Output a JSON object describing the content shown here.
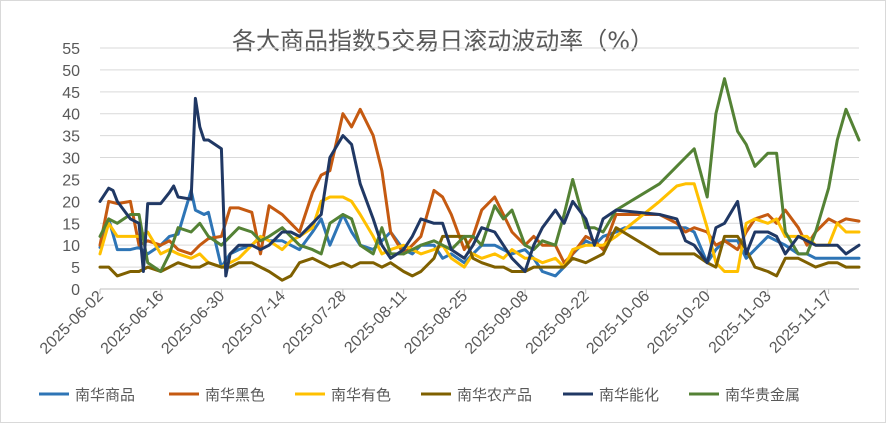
{
  "chart_data": {
    "type": "line",
    "title": "各大商品指数5交易日滚动波动率（%）",
    "ylim": [
      0,
      55
    ],
    "yticks": [
      0,
      5,
      10,
      15,
      20,
      25,
      30,
      35,
      40,
      45,
      50,
      55
    ],
    "xlim": [
      "2025-06-02",
      "2025-11-24"
    ],
    "xticks": [
      "2025-06-02",
      "2025-06-16",
      "2025-06-30",
      "2025-07-14",
      "2025-07-28",
      "2025-08-11",
      "2025-08-25",
      "2025-09-08",
      "2025-09-22",
      "2025-10-06",
      "2025-10-20",
      "2025-11-03",
      "2025-11-17"
    ],
    "grid": "horizontal",
    "legend_position": "bottom",
    "series": [
      {
        "name": "南华商品",
        "color": "#2E75B6",
        "x": [
          "2025-06-02",
          "2025-06-04",
          "2025-06-06",
          "2025-06-09",
          "2025-06-11",
          "2025-06-13",
          "2025-06-16",
          "2025-06-18",
          "2025-06-20",
          "2025-06-23",
          "2025-06-24",
          "2025-06-26",
          "2025-06-27",
          "2025-06-30",
          "2025-07-02",
          "2025-07-04",
          "2025-07-07",
          "2025-07-09",
          "2025-07-11",
          "2025-07-14",
          "2025-07-16",
          "2025-07-18",
          "2025-07-21",
          "2025-07-23",
          "2025-07-25",
          "2025-07-28",
          "2025-07-30",
          "2025-08-01",
          "2025-08-04",
          "2025-08-06",
          "2025-08-08",
          "2025-08-11",
          "2025-08-13",
          "2025-08-15",
          "2025-08-18",
          "2025-08-20",
          "2025-08-22",
          "2025-08-25",
          "2025-08-27",
          "2025-08-29",
          "2025-09-01",
          "2025-09-03",
          "2025-09-05",
          "2025-09-08",
          "2025-09-10",
          "2025-09-12",
          "2025-09-15",
          "2025-09-17",
          "2025-09-19",
          "2025-09-22",
          "2025-09-24",
          "2025-09-26",
          "2025-09-29",
          "2025-10-01",
          "2025-10-09",
          "2025-10-13",
          "2025-10-15",
          "2025-10-17",
          "2025-10-20",
          "2025-10-22",
          "2025-10-24",
          "2025-10-27",
          "2025-10-29",
          "2025-10-31",
          "2025-11-03",
          "2025-11-05",
          "2025-11-07",
          "2025-11-10",
          "2025-11-12",
          "2025-11-14",
          "2025-11-17",
          "2025-11-19",
          "2025-11-21",
          "2025-11-24"
        ],
        "values": [
          9.5,
          16,
          9,
          9,
          9.5,
          8,
          10,
          12,
          12.5,
          22.5,
          18,
          17,
          17.5,
          5,
          8,
          9,
          10,
          12,
          11,
          11,
          10,
          9,
          13,
          16,
          10,
          17,
          13,
          10,
          9,
          11,
          13,
          9,
          8,
          10,
          10,
          7,
          8,
          6,
          8,
          10,
          10,
          9,
          8,
          9,
          7,
          4,
          3,
          5,
          8,
          11,
          10,
          12,
          13,
          14,
          14,
          14,
          14,
          13,
          6,
          9,
          11,
          11,
          7,
          9,
          12,
          11,
          10,
          8,
          8,
          7,
          7,
          7,
          7,
          7
        ]
      },
      {
        "name": "南华黑色",
        "color": "#C55A11",
        "x": [
          "2025-06-02",
          "2025-06-04",
          "2025-06-06",
          "2025-06-09",
          "2025-06-11",
          "2025-06-13",
          "2025-06-16",
          "2025-06-18",
          "2025-06-20",
          "2025-06-23",
          "2025-06-25",
          "2025-06-27",
          "2025-06-30",
          "2025-07-02",
          "2025-07-04",
          "2025-07-07",
          "2025-07-09",
          "2025-07-11",
          "2025-07-14",
          "2025-07-16",
          "2025-07-18",
          "2025-07-21",
          "2025-07-23",
          "2025-07-25",
          "2025-07-28",
          "2025-07-30",
          "2025-08-01",
          "2025-08-04",
          "2025-08-06",
          "2025-08-08",
          "2025-08-11",
          "2025-08-13",
          "2025-08-15",
          "2025-08-18",
          "2025-08-20",
          "2025-08-22",
          "2025-08-25",
          "2025-08-27",
          "2025-08-29",
          "2025-09-01",
          "2025-09-03",
          "2025-09-05",
          "2025-09-08",
          "2025-09-10",
          "2025-09-12",
          "2025-09-15",
          "2025-09-17",
          "2025-09-19",
          "2025-09-22",
          "2025-09-24",
          "2025-09-26",
          "2025-09-29",
          "2025-10-09",
          "2025-10-13",
          "2025-10-15",
          "2025-10-17",
          "2025-10-20",
          "2025-10-22",
          "2025-10-24",
          "2025-10-27",
          "2025-10-29",
          "2025-10-31",
          "2025-11-03",
          "2025-11-05",
          "2025-11-07",
          "2025-11-10",
          "2025-11-12",
          "2025-11-14",
          "2025-11-17",
          "2025-11-19",
          "2025-11-21",
          "2025-11-24"
        ],
        "values": [
          10,
          20,
          19.5,
          20,
          10,
          11,
          10,
          11,
          9,
          8,
          10,
          11.5,
          12,
          18.5,
          18.5,
          17.5,
          8,
          19,
          17,
          15,
          13,
          22,
          26,
          27,
          40,
          37,
          41,
          35,
          27,
          13,
          8,
          10,
          12,
          22.5,
          21,
          17,
          9,
          12,
          18,
          21,
          17,
          13,
          10,
          12,
          10,
          10,
          6,
          8,
          12,
          11,
          9,
          17,
          17,
          15,
          13,
          14,
          13,
          10,
          11,
          9,
          13,
          16,
          17,
          15,
          18,
          14,
          10,
          13,
          16,
          15,
          16,
          15.5
        ]
      },
      {
        "name": "南华有色",
        "color": "#FFC000",
        "x": [
          "2025-06-02",
          "2025-06-04",
          "2025-06-06",
          "2025-06-09",
          "2025-06-11",
          "2025-06-13",
          "2025-06-16",
          "2025-06-18",
          "2025-06-20",
          "2025-06-23",
          "2025-06-25",
          "2025-06-27",
          "2025-06-30",
          "2025-07-02",
          "2025-07-04",
          "2025-07-07",
          "2025-07-09",
          "2025-07-11",
          "2025-07-14",
          "2025-07-16",
          "2025-07-18",
          "2025-07-21",
          "2025-07-23",
          "2025-07-25",
          "2025-07-28",
          "2025-07-30",
          "2025-08-01",
          "2025-08-04",
          "2025-08-06",
          "2025-08-08",
          "2025-08-11",
          "2025-08-13",
          "2025-08-15",
          "2025-08-18",
          "2025-08-20",
          "2025-08-22",
          "2025-08-25",
          "2025-08-27",
          "2025-08-29",
          "2025-09-01",
          "2025-09-03",
          "2025-09-05",
          "2025-09-08",
          "2025-09-10",
          "2025-09-12",
          "2025-09-15",
          "2025-09-17",
          "2025-09-19",
          "2025-09-22",
          "2025-09-24",
          "2025-09-26",
          "2025-09-29",
          "2025-10-09",
          "2025-10-13",
          "2025-10-15",
          "2025-10-17",
          "2025-10-20",
          "2025-10-22",
          "2025-10-24",
          "2025-10-27",
          "2025-10-29",
          "2025-10-31",
          "2025-11-03",
          "2025-11-05",
          "2025-11-07",
          "2025-11-10",
          "2025-11-12",
          "2025-11-14",
          "2025-11-17",
          "2025-11-19",
          "2025-11-21",
          "2025-11-24"
        ],
        "values": [
          8,
          15,
          12,
          12,
          12,
          13,
          8,
          9,
          8,
          7,
          8,
          6,
          5,
          6,
          7,
          10,
          12,
          11,
          9,
          11,
          12,
          14,
          20,
          21,
          21,
          20,
          17,
          12,
          8,
          9,
          10,
          9,
          8,
          9,
          10,
          7,
          5,
          8,
          7,
          8,
          7,
          9,
          7,
          7,
          6,
          7,
          5,
          9,
          10,
          10,
          10,
          12,
          20,
          23.5,
          24,
          24,
          14,
          6,
          4,
          4,
          15,
          16,
          15,
          16,
          12,
          12,
          12,
          10,
          10,
          15,
          13,
          13
        ]
      },
      {
        "name": "南华农产品",
        "color": "#7F6000",
        "x": [
          "2025-06-02",
          "2025-06-04",
          "2025-06-06",
          "2025-06-09",
          "2025-06-11",
          "2025-06-13",
          "2025-06-16",
          "2025-06-18",
          "2025-06-20",
          "2025-06-23",
          "2025-06-25",
          "2025-06-27",
          "2025-06-30",
          "2025-07-02",
          "2025-07-04",
          "2025-07-07",
          "2025-07-09",
          "2025-07-11",
          "2025-07-14",
          "2025-07-16",
          "2025-07-18",
          "2025-07-21",
          "2025-07-23",
          "2025-07-25",
          "2025-07-28",
          "2025-07-30",
          "2025-08-01",
          "2025-08-04",
          "2025-08-06",
          "2025-08-08",
          "2025-08-11",
          "2025-08-13",
          "2025-08-15",
          "2025-08-18",
          "2025-08-20",
          "2025-08-22",
          "2025-08-25",
          "2025-08-27",
          "2025-08-29",
          "2025-09-01",
          "2025-09-03",
          "2025-09-05",
          "2025-09-08",
          "2025-09-10",
          "2025-09-12",
          "2025-09-15",
          "2025-09-17",
          "2025-09-19",
          "2025-09-22",
          "2025-09-24",
          "2025-09-26",
          "2025-09-29",
          "2025-10-09",
          "2025-10-13",
          "2025-10-15",
          "2025-10-17",
          "2025-10-20",
          "2025-10-22",
          "2025-10-24",
          "2025-10-27",
          "2025-10-29",
          "2025-10-31",
          "2025-11-03",
          "2025-11-05",
          "2025-11-07",
          "2025-11-10",
          "2025-11-12",
          "2025-11-14",
          "2025-11-17",
          "2025-11-19",
          "2025-11-21",
          "2025-11-24"
        ],
        "values": [
          5,
          5,
          3,
          4,
          4,
          5,
          4,
          5,
          6,
          5,
          5,
          6,
          5,
          5,
          6,
          6,
          5,
          4,
          2,
          3,
          6,
          7,
          6,
          5,
          6,
          5,
          6,
          6,
          5,
          6,
          4,
          3,
          4,
          7,
          12,
          12,
          12,
          7,
          6,
          5,
          5,
          4,
          4,
          5,
          5,
          5,
          5,
          7,
          6,
          7,
          8,
          14,
          8,
          8,
          8,
          8,
          6,
          5,
          12,
          12,
          9,
          5,
          4,
          3,
          7,
          7,
          6,
          5,
          6,
          6,
          5,
          5
        ]
      },
      {
        "name": "南华能化",
        "color": "#203864",
        "x": [
          "2025-06-02",
          "2025-06-04",
          "2025-06-05",
          "2025-06-06",
          "2025-06-09",
          "2025-06-11",
          "2025-06-12",
          "2025-06-13",
          "2025-06-16",
          "2025-06-18",
          "2025-06-19",
          "2025-06-20",
          "2025-06-23",
          "2025-06-24",
          "2025-06-25",
          "2025-06-26",
          "2025-06-27",
          "2025-06-30",
          "2025-07-01",
          "2025-07-02",
          "2025-07-04",
          "2025-07-07",
          "2025-07-09",
          "2025-07-11",
          "2025-07-14",
          "2025-07-16",
          "2025-07-18",
          "2025-07-21",
          "2025-07-23",
          "2025-07-25",
          "2025-07-28",
          "2025-07-30",
          "2025-08-01",
          "2025-08-04",
          "2025-08-06",
          "2025-08-08",
          "2025-08-11",
          "2025-08-13",
          "2025-08-15",
          "2025-08-18",
          "2025-08-20",
          "2025-08-22",
          "2025-08-25",
          "2025-08-27",
          "2025-08-29",
          "2025-09-01",
          "2025-09-03",
          "2025-09-05",
          "2025-09-08",
          "2025-09-10",
          "2025-09-12",
          "2025-09-15",
          "2025-09-17",
          "2025-09-19",
          "2025-09-22",
          "2025-09-24",
          "2025-09-26",
          "2025-09-29",
          "2025-10-09",
          "2025-10-13",
          "2025-10-15",
          "2025-10-17",
          "2025-10-20",
          "2025-10-22",
          "2025-10-24",
          "2025-10-27",
          "2025-10-29",
          "2025-10-31",
          "2025-11-03",
          "2025-11-05",
          "2025-11-07",
          "2025-11-10",
          "2025-11-12",
          "2025-11-14",
          "2025-11-17",
          "2025-11-19",
          "2025-11-21",
          "2025-11-24"
        ],
        "values": [
          20,
          23,
          22.5,
          20,
          16,
          15,
          4,
          19.5,
          19.5,
          22,
          23.5,
          21,
          20.5,
          43.5,
          37,
          34,
          34,
          32,
          3,
          8,
          10,
          10,
          9,
          10,
          13,
          13,
          12,
          15,
          17,
          30,
          35,
          33,
          24,
          16,
          10,
          7,
          9,
          12,
          16,
          15,
          15,
          9,
          7,
          10,
          14,
          13,
          10,
          7,
          4,
          10,
          14,
          18,
          15,
          20,
          16,
          10,
          16,
          18,
          17,
          16,
          11,
          10,
          6,
          14,
          15,
          20,
          8,
          13,
          13,
          12,
          8,
          12,
          11,
          10,
          10,
          10,
          8,
          10
        ]
      },
      {
        "name": "南华贵金属",
        "color": "#548235",
        "x": [
          "2025-06-02",
          "2025-06-04",
          "2025-06-06",
          "2025-06-09",
          "2025-06-11",
          "2025-06-13",
          "2025-06-16",
          "2025-06-18",
          "2025-06-20",
          "2025-06-23",
          "2025-06-25",
          "2025-06-27",
          "2025-06-30",
          "2025-07-02",
          "2025-07-04",
          "2025-07-07",
          "2025-07-09",
          "2025-07-11",
          "2025-07-14",
          "2025-07-16",
          "2025-07-18",
          "2025-07-21",
          "2025-07-23",
          "2025-07-25",
          "2025-07-28",
          "2025-07-30",
          "2025-08-01",
          "2025-08-04",
          "2025-08-06",
          "2025-08-08",
          "2025-08-11",
          "2025-08-13",
          "2025-08-15",
          "2025-08-18",
          "2025-08-20",
          "2025-08-22",
          "2025-08-25",
          "2025-08-27",
          "2025-08-29",
          "2025-09-01",
          "2025-09-03",
          "2025-09-05",
          "2025-09-08",
          "2025-09-10",
          "2025-09-12",
          "2025-09-15",
          "2025-09-17",
          "2025-09-19",
          "2025-09-22",
          "2025-09-24",
          "2025-09-26",
          "2025-09-29",
          "2025-10-09",
          "2025-10-13",
          "2025-10-15",
          "2025-10-17",
          "2025-10-20",
          "2025-10-22",
          "2025-10-24",
          "2025-10-27",
          "2025-10-29",
          "2025-10-31",
          "2025-11-03",
          "2025-11-05",
          "2025-11-07",
          "2025-11-10",
          "2025-11-12",
          "2025-11-14",
          "2025-11-17",
          "2025-11-19",
          "2025-11-21",
          "2025-11-24"
        ],
        "values": [
          12,
          16,
          15,
          17,
          17,
          6,
          4,
          8,
          14,
          13,
          15,
          12,
          10,
          12,
          14,
          13,
          11,
          12,
          14,
          12,
          10,
          9,
          8,
          15,
          17,
          16,
          10,
          8,
          14,
          8,
          8,
          9,
          10,
          11,
          10,
          9,
          12,
          12,
          10,
          19,
          16,
          18,
          10,
          9,
          11,
          10,
          17,
          25,
          14,
          14,
          13,
          18,
          24,
          28,
          30,
          32,
          21,
          40,
          48,
          36,
          33,
          28,
          31,
          31,
          13,
          8,
          8,
          13,
          23,
          34,
          41,
          34
        ]
      }
    ]
  }
}
